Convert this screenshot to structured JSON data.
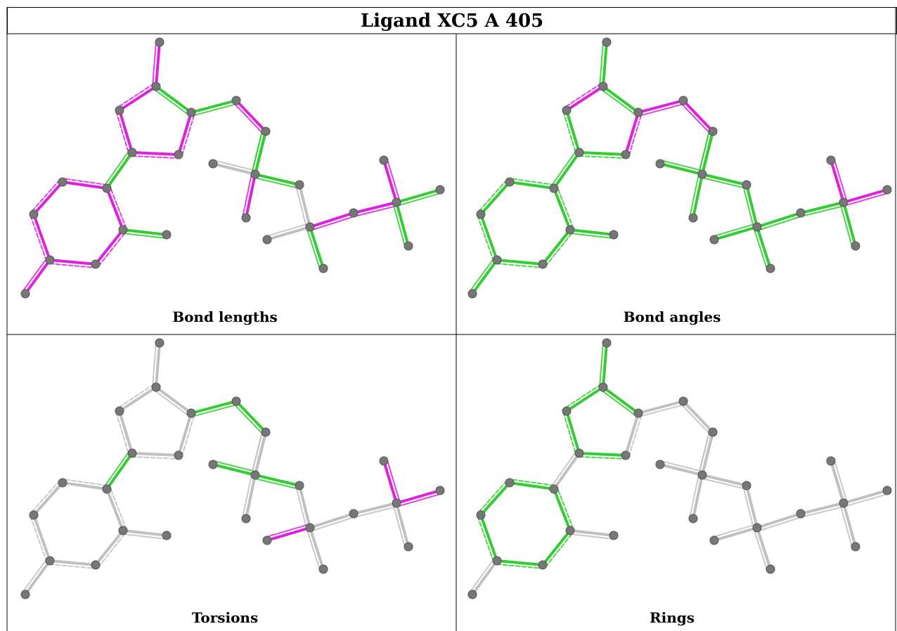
{
  "title": "Ligand XC5 A 405",
  "colors": {
    "pass": "#33cc33",
    "outlier": "#dd22dd",
    "neutral": "#c0c0c0",
    "atom": "#777777"
  },
  "panels": [
    {
      "label": "Bond lengths",
      "bonds": [
        "outlier",
        "outlier",
        "pass",
        "outlier",
        "outlier",
        "outlier",
        "pass",
        "pass",
        "outlier",
        "outlier",
        "outlier",
        "outlier",
        "outlier",
        "outlier",
        "outlier",
        "pass",
        "outlier",
        "pass",
        "neutral",
        "outlier",
        "pass",
        "neutral",
        "neutral",
        "pass",
        "outlier",
        "outlier",
        "outlier",
        "pass",
        "pass",
        "pass"
      ]
    },
    {
      "label": "Bond angles",
      "bonds": [
        "pass",
        "outlier",
        "pass",
        "pass",
        "pass",
        "outlier",
        "pass",
        "outlier",
        "outlier",
        "pass",
        "pass",
        "pass",
        "pass",
        "pass",
        "pass",
        "pass",
        "pass",
        "pass",
        "pass",
        "pass",
        "pass",
        "pass",
        "pass",
        "pass",
        "pass",
        "pass",
        "outlier",
        "outlier",
        "pass",
        "pass"
      ]
    },
    {
      "label": "Torsions",
      "bonds": [
        "neutral",
        "neutral",
        "neutral",
        "neutral",
        "neutral",
        "neutral",
        "pass",
        "pass",
        "pass",
        "neutral",
        "neutral",
        "neutral",
        "neutral",
        "neutral",
        "neutral",
        "neutral",
        "neutral",
        "neutral",
        "pass",
        "neutral",
        "pass",
        "neutral",
        "outlier",
        "neutral",
        "neutral",
        "neutral",
        "outlier",
        "outlier",
        "neutral",
        "neutral"
      ]
    },
    {
      "label": "Rings",
      "bonds": [
        "pass",
        "pass",
        "pass",
        "pass",
        "pass",
        "neutral",
        "neutral",
        "neutral",
        "neutral",
        "pass",
        "pass",
        "pass",
        "pass",
        "pass",
        "pass",
        "neutral",
        "neutral",
        "neutral",
        "neutral",
        "neutral",
        "neutral",
        "neutral",
        "neutral",
        "neutral",
        "neutral",
        "neutral",
        "neutral",
        "neutral",
        "neutral",
        "neutral"
      ]
    }
  ]
}
